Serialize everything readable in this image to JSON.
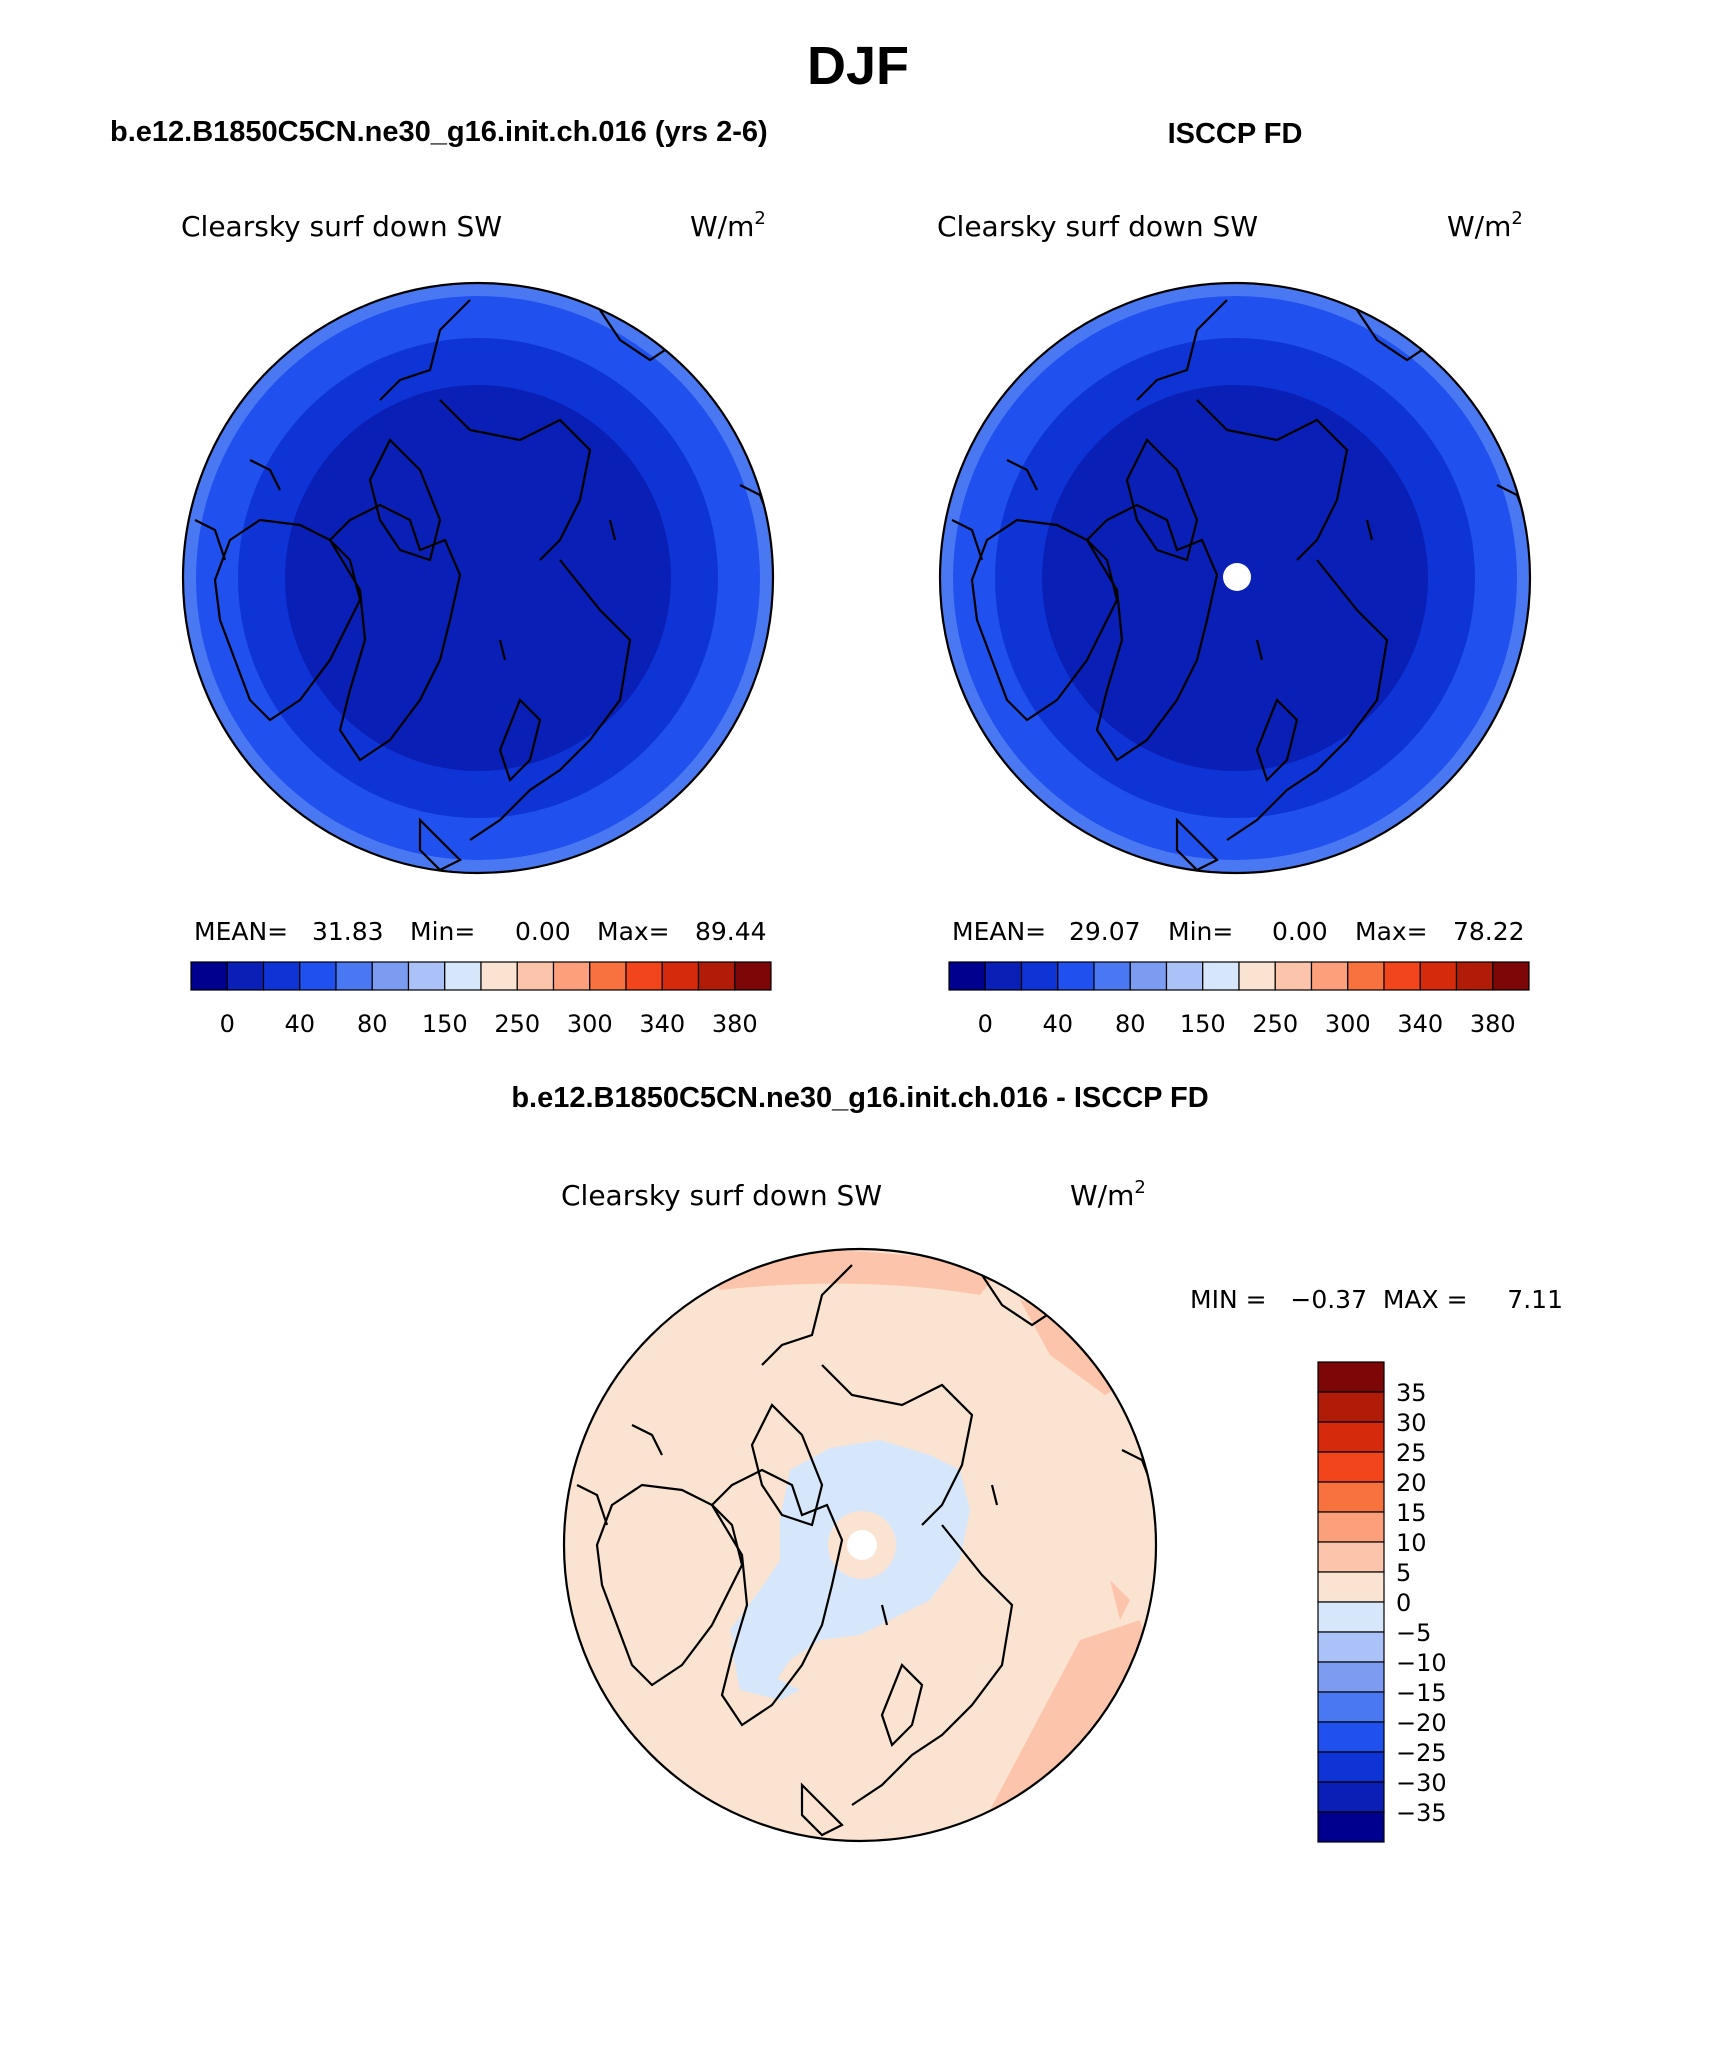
{
  "page": {
    "season": "DJF",
    "variable": "Clearsky surf down SW",
    "units_base": "W/m",
    "units_exp": "2"
  },
  "panels": {
    "model": {
      "heading": "b.e12.B1850C5CN.ne30_g16.init.ch.016 (yrs 2-6)",
      "stats": {
        "mean_label": "MEAN=",
        "mean": "31.83",
        "min_label": "Min=",
        "min": "0.00",
        "max_label": "Max=",
        "max": "89.44"
      }
    },
    "obs": {
      "heading": "ISCCP FD",
      "stats": {
        "mean_label": "MEAN=",
        "mean": "29.07",
        "min_label": "Min=",
        "min": "0.00",
        "max_label": "Max=",
        "max": "78.22"
      }
    },
    "diff": {
      "heading": "b.e12.B1850C5CN.ne30_g16.init.ch.016 - ISCCP FD",
      "min_max_text": "MIN =   −0.37  MAX =     7.11"
    }
  },
  "colors": {
    "abs_scale": [
      "#00008f",
      "#0a1fb5",
      "#0f34d6",
      "#2050ee",
      "#4a78f2",
      "#7c9cf2",
      "#aac2f7",
      "#d6e7fb",
      "#fbe3d2",
      "#fcc4aa",
      "#fba07a",
      "#f7723f",
      "#f2451c",
      "#d52a0c",
      "#b01c08",
      "#7d0606"
    ],
    "diff_scale": [
      "#00008f",
      "#0a1fb5",
      "#0f34d6",
      "#2050ee",
      "#4a78f2",
      "#7c9cf2",
      "#aac2f7",
      "#d6e7fb",
      "#fbe3d2",
      "#fcc4aa",
      "#fba07a",
      "#f7723f",
      "#f2451c",
      "#d52a0c",
      "#b01c08",
      "#7d0606"
    ]
  },
  "chart_data": [
    {
      "type": "heatmap",
      "title": "Clearsky surf down SW",
      "projection": "north polar stereographic",
      "units": "W/m2",
      "mean": 31.83,
      "min": 0.0,
      "max": 89.44,
      "levels": [
        0,
        20,
        40,
        60,
        80,
        100,
        150,
        200,
        250,
        275,
        300,
        320,
        340,
        360,
        380
      ],
      "tick_labels": [
        "0",
        "40",
        "80",
        "150",
        "250",
        "300",
        "340",
        "380"
      ],
      "ring_values_pole_to_edge": [
        20,
        40,
        60,
        80
      ]
    },
    {
      "type": "heatmap",
      "title": "Clearsky surf down SW",
      "projection": "north polar stereographic",
      "units": "W/m2",
      "mean": 29.07,
      "min": 0.0,
      "max": 78.22,
      "levels": [
        0,
        20,
        40,
        60,
        80,
        100,
        150,
        200,
        250,
        275,
        300,
        320,
        340,
        360,
        380
      ],
      "tick_labels": [
        "0",
        "40",
        "80",
        "150",
        "250",
        "300",
        "340",
        "380"
      ],
      "ring_values_pole_to_edge": [
        20,
        40,
        60,
        80
      ]
    },
    {
      "type": "heatmap",
      "title": "Clearsky surf down SW",
      "projection": "north polar stereographic",
      "units": "W/m2",
      "min": -0.37,
      "max": 7.11,
      "levels": [
        -35,
        -30,
        -25,
        -20,
        -15,
        -10,
        -5,
        0,
        5,
        10,
        15,
        20,
        25,
        30,
        35
      ],
      "tick_labels": [
        "35",
        "30",
        "25",
        "20",
        "15",
        "10",
        "5",
        "0",
        "−5",
        "−10",
        "−15",
        "−20",
        "−25",
        "−30",
        "−35"
      ]
    }
  ]
}
